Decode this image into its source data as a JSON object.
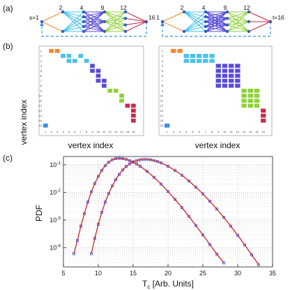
{
  "panels": {
    "a": "(a)",
    "b": "(b)",
    "c": "(c)"
  },
  "graphs": [
    {
      "start_label": "s=1",
      "end_label": "16",
      "layer_labels": [
        "2",
        "4",
        "9",
        "12"
      ],
      "layer_sizes": [
        1,
        2,
        5,
        3,
        4,
        1
      ],
      "edge_colors": [
        "#f28a2e",
        "#49c2ea",
        "#5a4bd6",
        "#8fd13a",
        "#c72c48"
      ]
    },
    {
      "start_label": "1",
      "end_label": "t=16",
      "layer_labels": [
        "2",
        "4",
        "9",
        "12"
      ],
      "layer_sizes": [
        1,
        2,
        5,
        4,
        3,
        1
      ],
      "edge_colors": [
        "#f28a2e",
        "#49c2ea",
        "#5a4bd6",
        "#8fd13a",
        "#c72c48"
      ]
    }
  ],
  "adjacency": {
    "ylabel": "vertex index",
    "xlabel": "vertex index",
    "ticks": [
      "1",
      "2",
      "3",
      "4",
      "5",
      "6",
      "7",
      "8",
      "9",
      "10",
      "11",
      "12",
      "13",
      "14",
      "15",
      "16"
    ],
    "matrices": [
      {
        "cells": [
          {
            "r": 1,
            "c": 2,
            "color": "#f28a2e"
          },
          {
            "r": 1,
            "c": 3,
            "color": "#f28a2e"
          },
          {
            "r": 2,
            "c": 4,
            "color": "#49c2ea"
          },
          {
            "r": 2,
            "c": 5,
            "color": "#49c2ea"
          },
          {
            "r": 2,
            "c": 7,
            "color": "#49c2ea"
          },
          {
            "r": 3,
            "c": 5,
            "color": "#49c2ea"
          },
          {
            "r": 3,
            "c": 6,
            "color": "#49c2ea"
          },
          {
            "r": 3,
            "c": 8,
            "color": "#49c2ea"
          },
          {
            "r": 4,
            "c": 9,
            "color": "#5a4bd6"
          },
          {
            "r": 5,
            "c": 9,
            "color": "#5a4bd6"
          },
          {
            "r": 5,
            "c": 10,
            "color": "#5a4bd6"
          },
          {
            "r": 6,
            "c": 10,
            "color": "#5a4bd6"
          },
          {
            "r": 7,
            "c": 10,
            "color": "#5a4bd6"
          },
          {
            "r": 7,
            "c": 11,
            "color": "#5a4bd6"
          },
          {
            "r": 8,
            "c": 11,
            "color": "#5a4bd6"
          },
          {
            "r": 9,
            "c": 12,
            "color": "#8fd13a"
          },
          {
            "r": 9,
            "c": 13,
            "color": "#8fd13a"
          },
          {
            "r": 10,
            "c": 14,
            "color": "#8fd13a"
          },
          {
            "r": 11,
            "c": 14,
            "color": "#8fd13a"
          },
          {
            "r": 12,
            "c": 15,
            "color": "#c72c48"
          },
          {
            "r": 12,
            "c": 16,
            "color": "#c72c48"
          },
          {
            "r": 13,
            "c": 16,
            "color": "#c72c48"
          },
          {
            "r": 14,
            "c": 16,
            "color": "#c72c48"
          },
          {
            "r": 15,
            "c": 16,
            "color": "#c72c48"
          },
          {
            "r": 16,
            "c": 1,
            "color": "#3b8ee0"
          }
        ]
      },
      {
        "cells": [
          {
            "r": 1,
            "c": 2,
            "color": "#f28a2e"
          },
          {
            "r": 1,
            "c": 3,
            "color": "#f28a2e"
          },
          {
            "r": 2,
            "c": 4,
            "color": "#49c2ea"
          },
          {
            "r": 2,
            "c": 5,
            "color": "#49c2ea"
          },
          {
            "r": 2,
            "c": 6,
            "color": "#49c2ea"
          },
          {
            "r": 2,
            "c": 7,
            "color": "#49c2ea"
          },
          {
            "r": 2,
            "c": 8,
            "color": "#49c2ea"
          },
          {
            "r": 3,
            "c": 4,
            "color": "#49c2ea"
          },
          {
            "r": 3,
            "c": 5,
            "color": "#49c2ea"
          },
          {
            "r": 3,
            "c": 6,
            "color": "#49c2ea"
          },
          {
            "r": 3,
            "c": 7,
            "color": "#49c2ea"
          },
          {
            "r": 3,
            "c": 8,
            "color": "#49c2ea"
          },
          {
            "r": 4,
            "c": 9,
            "color": "#5a4bd6"
          },
          {
            "r": 4,
            "c": 10,
            "color": "#5a4bd6"
          },
          {
            "r": 4,
            "c": 11,
            "color": "#5a4bd6"
          },
          {
            "r": 4,
            "c": 12,
            "color": "#5a4bd6"
          },
          {
            "r": 5,
            "c": 9,
            "color": "#5a4bd6"
          },
          {
            "r": 5,
            "c": 10,
            "color": "#5a4bd6"
          },
          {
            "r": 5,
            "c": 11,
            "color": "#5a4bd6"
          },
          {
            "r": 5,
            "c": 12,
            "color": "#5a4bd6"
          },
          {
            "r": 6,
            "c": 9,
            "color": "#5a4bd6"
          },
          {
            "r": 6,
            "c": 10,
            "color": "#5a4bd6"
          },
          {
            "r": 6,
            "c": 11,
            "color": "#5a4bd6"
          },
          {
            "r": 6,
            "c": 12,
            "color": "#5a4bd6"
          },
          {
            "r": 7,
            "c": 9,
            "color": "#5a4bd6"
          },
          {
            "r": 7,
            "c": 10,
            "color": "#5a4bd6"
          },
          {
            "r": 7,
            "c": 11,
            "color": "#5a4bd6"
          },
          {
            "r": 7,
            "c": 12,
            "color": "#5a4bd6"
          },
          {
            "r": 8,
            "c": 9,
            "color": "#5a4bd6"
          },
          {
            "r": 8,
            "c": 10,
            "color": "#5a4bd6"
          },
          {
            "r": 8,
            "c": 11,
            "color": "#5a4bd6"
          },
          {
            "r": 8,
            "c": 12,
            "color": "#5a4bd6"
          },
          {
            "r": 9,
            "c": 13,
            "color": "#8fd13a"
          },
          {
            "r": 9,
            "c": 14,
            "color": "#8fd13a"
          },
          {
            "r": 9,
            "c": 15,
            "color": "#8fd13a"
          },
          {
            "r": 10,
            "c": 13,
            "color": "#8fd13a"
          },
          {
            "r": 10,
            "c": 14,
            "color": "#8fd13a"
          },
          {
            "r": 10,
            "c": 15,
            "color": "#8fd13a"
          },
          {
            "r": 11,
            "c": 13,
            "color": "#8fd13a"
          },
          {
            "r": 11,
            "c": 14,
            "color": "#8fd13a"
          },
          {
            "r": 11,
            "c": 15,
            "color": "#8fd13a"
          },
          {
            "r": 12,
            "c": 13,
            "color": "#8fd13a"
          },
          {
            "r": 12,
            "c": 14,
            "color": "#8fd13a"
          },
          {
            "r": 12,
            "c": 15,
            "color": "#8fd13a"
          },
          {
            "r": 13,
            "c": 16,
            "color": "#c72c48"
          },
          {
            "r": 14,
            "c": 16,
            "color": "#c72c48"
          },
          {
            "r": 15,
            "c": 16,
            "color": "#c72c48"
          },
          {
            "r": 16,
            "c": 1,
            "color": "#3b8ee0"
          }
        ]
      }
    ]
  },
  "chart_data": {
    "type": "scatter",
    "xlabel": "T",
    "xlabel_sub": "c",
    "xlabel_suffix": " [Arb. Units]",
    "ylabel": "PDF",
    "xlim": [
      5,
      35
    ],
    "ylim_log10": [
      -4.7,
      -0.7
    ],
    "yscale": "log",
    "xticks": [
      5,
      10,
      15,
      20,
      25,
      30,
      35
    ],
    "yticks": [
      {
        "base": "10",
        "exp": "-1",
        "value": 0.1
      },
      {
        "base": "10",
        "exp": "-2",
        "value": 0.01
      },
      {
        "base": "10",
        "exp": "-3",
        "value": 0.001
      },
      {
        "base": "10",
        "exp": "-4",
        "value": 0.0001
      }
    ],
    "grid": true,
    "marker_color": "#2b3fd6",
    "fit_color": "#d0202a",
    "series": [
      {
        "x": [
          6.5,
          7.0,
          7.5,
          8.0,
          8.5,
          9.0,
          9.5,
          10.0,
          10.5,
          11.0,
          11.5,
          12.0,
          12.5,
          13.0,
          13.5,
          14.0,
          14.5,
          15.0,
          15.5,
          16.0,
          17.0,
          18.0,
          19.0,
          20.0,
          21.0,
          22.0,
          23.0,
          24.0,
          25.0,
          26.0,
          27.0,
          28.0,
          29.0,
          30.0,
          31.0
        ],
        "y": [
          6e-05,
          0.00018,
          0.0006,
          0.0017,
          0.0045,
          0.0105,
          0.021,
          0.038,
          0.063,
          0.094,
          0.125,
          0.152,
          0.168,
          0.172,
          0.168,
          0.158,
          0.142,
          0.125,
          0.107,
          0.089,
          0.058,
          0.035,
          0.02,
          0.0108,
          0.0056,
          0.0028,
          0.00135,
          0.00063,
          0.00029,
          0.00013,
          5.8e-05,
          2.8e-05,
          1.6e-05,
          1.2e-05,
          1e-05
        ]
      },
      {
        "x": [
          9.0,
          9.5,
          10.0,
          10.5,
          11.0,
          11.5,
          12.0,
          12.5,
          13.0,
          13.5,
          14.0,
          14.5,
          15.0,
          15.5,
          16.0,
          16.5,
          17.0,
          17.5,
          18.0,
          18.5,
          19.0,
          20.0,
          21.0,
          22.0,
          23.0,
          24.0,
          25.0,
          26.0,
          27.0,
          28.0,
          29.0,
          30.0,
          31.0,
          32.0,
          33.0,
          34.0
        ],
        "y": [
          6e-05,
          0.00022,
          0.0007,
          0.0019,
          0.0045,
          0.0092,
          0.017,
          0.029,
          0.045,
          0.065,
          0.087,
          0.108,
          0.128,
          0.143,
          0.152,
          0.157,
          0.157,
          0.152,
          0.143,
          0.131,
          0.118,
          0.089,
          0.063,
          0.042,
          0.026,
          0.0155,
          0.0088,
          0.0048,
          0.0025,
          0.00125,
          0.0006,
          0.00028,
          0.000125,
          5.5e-05,
          2.4e-05,
          1.1e-05
        ]
      }
    ]
  }
}
